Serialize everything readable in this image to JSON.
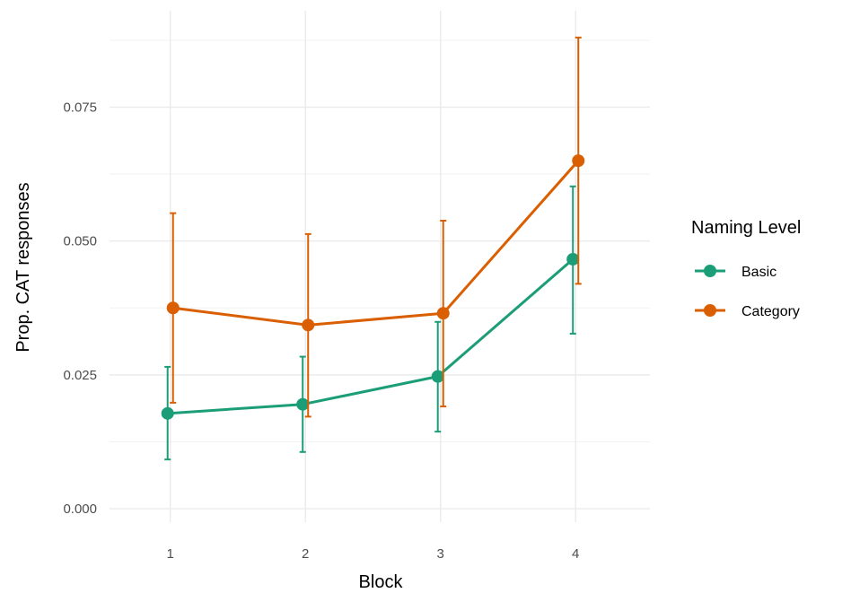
{
  "chart_data": {
    "type": "line",
    "title": "",
    "xlabel": "Block",
    "ylabel": "Prop. CAT responses",
    "x": [
      1,
      2,
      3,
      4
    ],
    "x_tick_labels": [
      "1",
      "2",
      "3",
      "4"
    ],
    "y_ticks": [
      0.0,
      0.025,
      0.05,
      0.075
    ],
    "y_tick_labels": [
      "0.000",
      "0.025",
      "0.050",
      "0.075"
    ],
    "ylim": [
      -0.0025,
      0.093
    ],
    "xlim": [
      0.55,
      4.55
    ],
    "grid": true,
    "legend": {
      "title": "Naming Level",
      "position": "right"
    },
    "series": [
      {
        "name": "Basic",
        "color": "#1b9e77",
        "values": [
          0.0178,
          0.0195,
          0.0247,
          0.0466
        ],
        "lower": [
          0.0092,
          0.0106,
          0.0144,
          0.0327
        ],
        "upper": [
          0.0265,
          0.0284,
          0.0349,
          0.0602
        ]
      },
      {
        "name": "Category",
        "color": "#d95f02",
        "values": [
          0.0375,
          0.0343,
          0.0365,
          0.065
        ],
        "lower": [
          0.0198,
          0.0172,
          0.0191,
          0.042
        ],
        "upper": [
          0.0552,
          0.0513,
          0.0538,
          0.088
        ]
      }
    ]
  }
}
